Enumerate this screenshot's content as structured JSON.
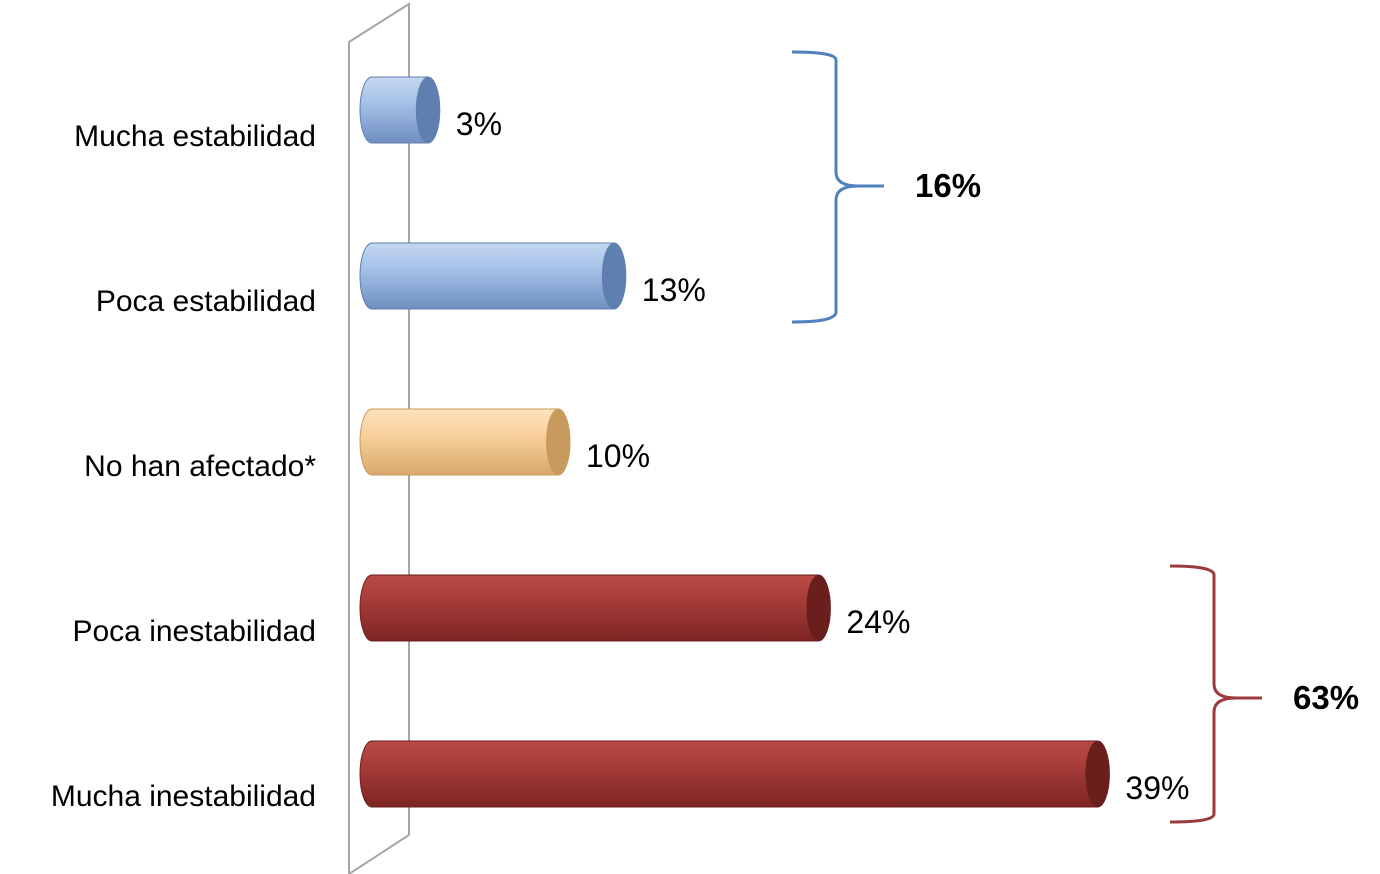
{
  "chart_data": {
    "type": "bar",
    "orientation": "horizontal",
    "categories": [
      "Mucha estabilidad",
      "Poca estabilidad",
      "No han afectado*",
      "Poca inestabilidad",
      "Mucha inestabilidad"
    ],
    "values": [
      3,
      13,
      10,
      24,
      39
    ],
    "value_labels": [
      "3%",
      "13%",
      "10%",
      "24%",
      "39%"
    ],
    "bar_colors": [
      "#8fb0dc",
      "#8fb0dc",
      "#f5c98a",
      "#a83533",
      "#a83533"
    ],
    "xlim": [
      0,
      39
    ],
    "grid": false,
    "legend": "none",
    "groups": [
      {
        "label": "16%",
        "categories": [
          "Mucha estabilidad",
          "Poca estabilidad"
        ],
        "color": "#4f81bd"
      },
      {
        "label": "63%",
        "categories": [
          "Poca inestabilidad",
          "Mucha inestabilidad"
        ],
        "color": "#9b3b3b"
      }
    ]
  }
}
